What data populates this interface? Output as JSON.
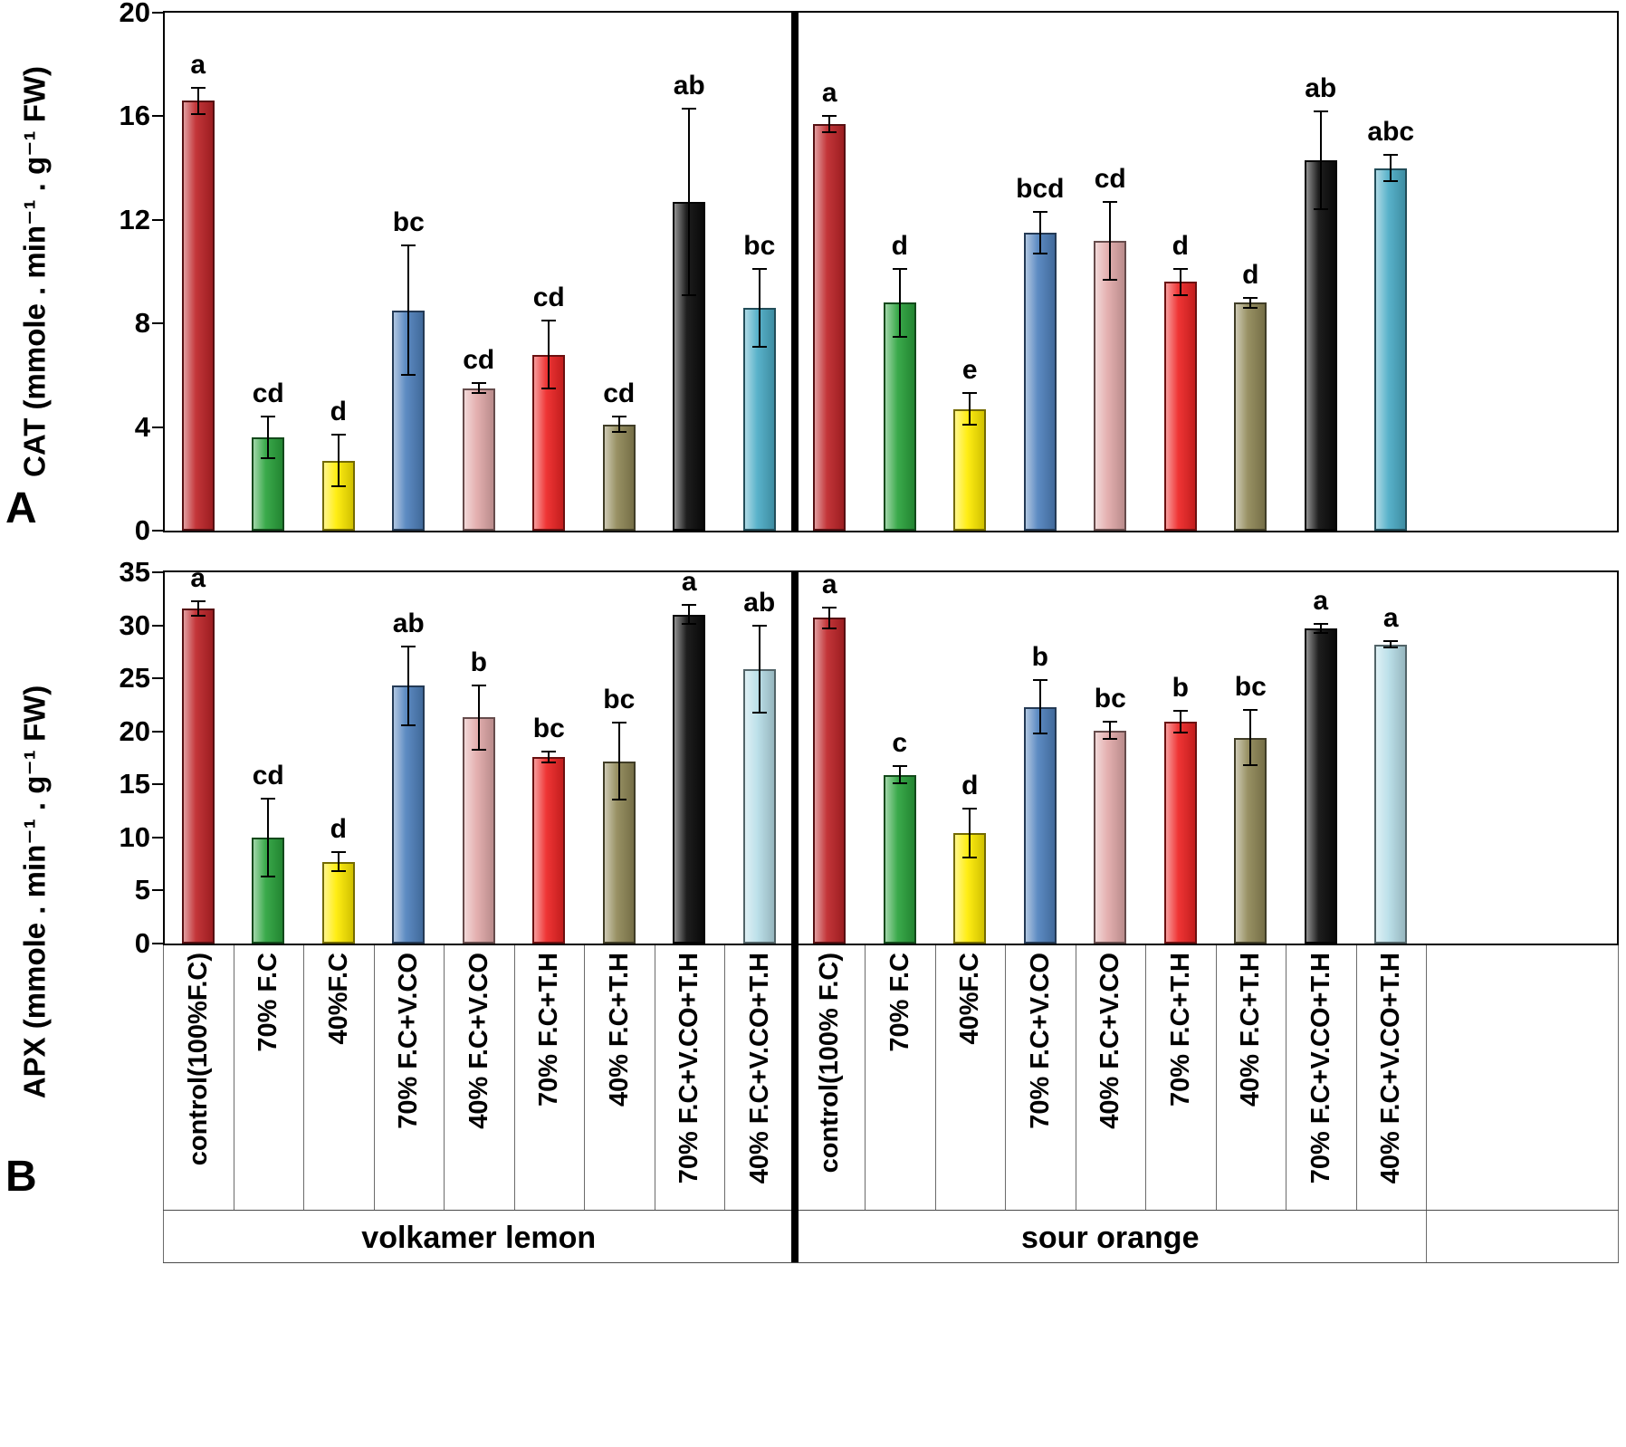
{
  "figure": {
    "description": "Two stacked bar-chart panels comparing antioxidant enzyme activity (CAT, APX) of two citrus rootstocks under irrigation / inoculation treatments",
    "group_labels": [
      "volkamer lemon",
      "sour orange"
    ]
  },
  "chart_data": [
    {
      "id": "A",
      "type": "bar",
      "panel_letter": "A",
      "ylabel": "CAT  (mmole . min⁻¹ . g⁻¹ FW)",
      "xlabel": "",
      "ylim": [
        0,
        20
      ],
      "yticks": [
        0,
        4,
        8,
        12,
        16,
        20
      ],
      "grid": false,
      "legend": false,
      "group_labels": [
        "volkamer lemon",
        "sour orange"
      ],
      "categories": [
        "control(100%F.C)",
        "70% F.C",
        "40%F.C",
        "70% F.C+V.CO",
        "40% F.C+V.CO",
        "70% F.C+T.H",
        "40% F.C+T.H",
        "70% F.C+V.CO+T.H",
        "40% F.C+V.CO+T.H",
        "control(100% F.C)",
        "70% F.C",
        "40%F.C",
        "70% F.C+V.CO",
        "40% F.C+V.CO",
        "70% F.C+T.H",
        "40% F.C+T.H",
        "70% F.C+V.CO+T.H",
        "40% F.C+V.CO+T.H"
      ],
      "values": [
        16.6,
        3.6,
        2.7,
        8.5,
        5.5,
        6.8,
        4.1,
        12.7,
        8.6,
        15.7,
        8.8,
        4.7,
        11.5,
        11.2,
        9.6,
        8.8,
        14.3,
        14.0
      ],
      "errors": [
        0.5,
        0.8,
        1.0,
        2.5,
        0.2,
        1.3,
        0.3,
        3.6,
        1.5,
        0.3,
        1.3,
        0.6,
        0.8,
        1.5,
        0.5,
        0.2,
        1.9,
        0.5
      ],
      "sig_letters": [
        "a",
        "cd",
        "d",
        "bc",
        "cd",
        "cd",
        "cd",
        "ab",
        "bc",
        "a",
        "d",
        "e",
        "bcd",
        "cd",
        "d",
        "d",
        "ab",
        "abc"
      ],
      "bar_colors": [
        "#be2428",
        "#2aa33c",
        "#ffec00",
        "#4f81bd",
        "#e2a9a9",
        "#ee2424",
        "#8f8756",
        "#0b0b0b",
        "#4bacc6",
        "#be2428",
        "#2aa33c",
        "#ffec00",
        "#4f81bd",
        "#e2a9a9",
        "#ee2424",
        "#8f8756",
        "#0b0b0b",
        "#4bacc6"
      ]
    },
    {
      "id": "B",
      "type": "bar",
      "panel_letter": "B",
      "ylabel": "APX (mmole . min⁻¹ .  g⁻¹ FW)",
      "xlabel": "",
      "ylim": [
        0,
        35
      ],
      "yticks": [
        0,
        5,
        10,
        15,
        20,
        25,
        30,
        35
      ],
      "grid": false,
      "legend": false,
      "group_labels": [
        "volkamer lemon",
        "sour orange"
      ],
      "categories": [
        "control(100%F.C)",
        "70% F.C",
        "40%F.C",
        "70% F.C+V.CO",
        "40% F.C+V.CO",
        "70% F.C+T.H",
        "40% F.C+T.H",
        "70% F.C+V.CO+T.H",
        "40% F.C+V.CO+T.H",
        "control(100% F.C)",
        "70% F.C",
        "40%F.C",
        "70% F.C+V.CO",
        "40% F.C+V.CO",
        "70% F.C+T.H",
        "40% F.C+T.H",
        "70% F.C+V.CO+T.H",
        "40% F.C+V.CO+T.H"
      ],
      "values": [
        31.6,
        10.0,
        7.7,
        24.3,
        21.3,
        17.6,
        17.2,
        31.0,
        25.9,
        30.7,
        15.9,
        10.4,
        22.3,
        20.1,
        20.9,
        19.4,
        29.7,
        28.2
      ],
      "errors": [
        0.7,
        3.7,
        0.9,
        3.7,
        3.0,
        0.5,
        3.6,
        0.9,
        4.1,
        1.0,
        0.8,
        2.3,
        2.5,
        0.8,
        1.0,
        2.6,
        0.4,
        0.3
      ],
      "sig_letters": [
        "a",
        "cd",
        "d",
        "ab",
        "b",
        "bc",
        "bc",
        "a",
        "ab",
        "a",
        "c",
        "d",
        "b",
        "bc",
        "b",
        "bc",
        "a",
        "a"
      ],
      "bar_colors": [
        "#be2428",
        "#2aa33c",
        "#ffec00",
        "#4f81bd",
        "#e2a9a9",
        "#ee2424",
        "#8f8756",
        "#0b0b0b",
        "#b7dee8",
        "#be2428",
        "#2aa33c",
        "#ffec00",
        "#4f81bd",
        "#e2a9a9",
        "#ee2424",
        "#8f8756",
        "#0b0b0b",
        "#b7dee8"
      ]
    }
  ]
}
